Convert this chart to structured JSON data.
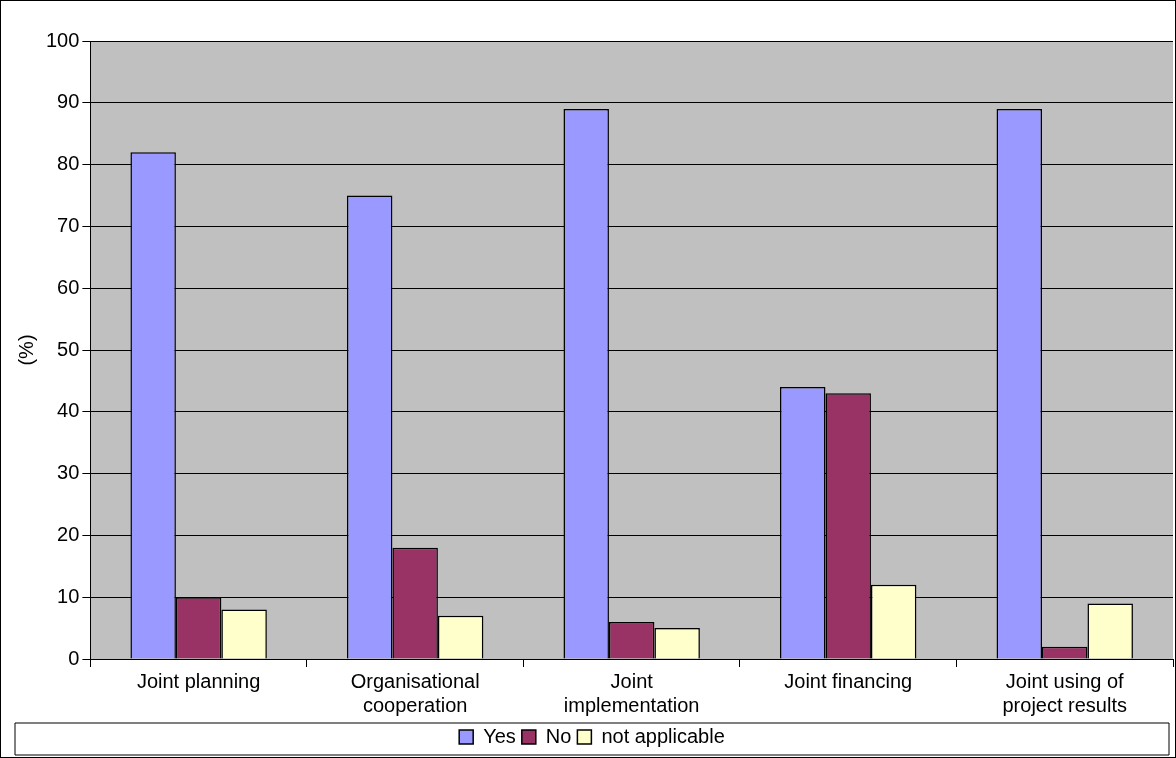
{
  "chart_data": {
    "type": "bar",
    "ylabel": "(%)",
    "categories": [
      "Joint planning",
      "Organisational cooperation",
      "Joint implementation",
      "Joint financing",
      "Joint using of project results"
    ],
    "series": [
      {
        "name": "Yes",
        "color": "#9999ff",
        "values": [
          82,
          75,
          89,
          44,
          89
        ]
      },
      {
        "name": "No",
        "color": "#993366",
        "values": [
          10,
          18,
          6,
          43,
          2
        ]
      },
      {
        "name": "not applicable",
        "color": "#ffffcc",
        "values": [
          8,
          7,
          5,
          12,
          9
        ]
      }
    ],
    "ylim": [
      0,
      100
    ],
    "yticks": [
      0,
      10,
      20,
      30,
      40,
      50,
      60,
      70,
      80,
      90,
      100
    ],
    "grid": "y",
    "legend": "bottom"
  }
}
